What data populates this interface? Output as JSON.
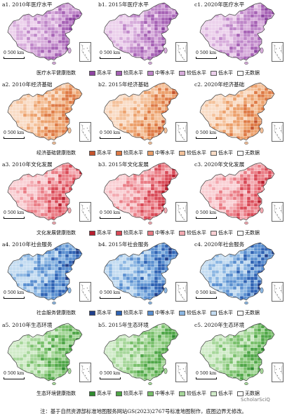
{
  "rows": [
    {
      "key": "medical",
      "palette": [
        "#8e44a2",
        "#a661b5",
        "#bf86c9",
        "#d7acdb",
        "#ecd1ec",
        "#ffffff"
      ],
      "panels": [
        {
          "title": "a1. 2010年医疗水平",
          "scale": "0 500 km"
        },
        {
          "title": "b1. 2015年医疗水平",
          "scale": "0 500 km"
        },
        {
          "title": "c1. 2020年医疗水平",
          "scale": "0 500 km"
        }
      ],
      "legend_title": "医疗水平健康指数",
      "legend_items": [
        "高水平",
        "较高水平",
        "中等水平",
        "较低水平",
        "低水平",
        "无数据"
      ]
    },
    {
      "key": "economic",
      "palette": [
        "#c5532c",
        "#de7a45",
        "#eca06b",
        "#f4c19a",
        "#f9dcc6",
        "#ffffff"
      ],
      "panels": [
        {
          "title": "a2. 2010年经济基础",
          "scale": "0 500 km"
        },
        {
          "title": "b2. 2015年经济基础",
          "scale": "0 500 km"
        },
        {
          "title": "c2. 2020年经济基础",
          "scale": "0 500 km"
        }
      ],
      "legend_title": "经济基础健康指数",
      "legend_items": [
        "高水平",
        "较高水平",
        "中等水平",
        "较低水平",
        "低水平",
        "无数据"
      ]
    },
    {
      "key": "culture",
      "palette": [
        "#b81e2e",
        "#d94a57",
        "#ea7c85",
        "#f3a9b0",
        "#f9d0d4",
        "#ffffff"
      ],
      "panels": [
        {
          "title": "a3. 2010年文化发展",
          "scale": "0 500 km"
        },
        {
          "title": "b3. 2015年文化发展",
          "scale": "0 500 km"
        },
        {
          "title": "c3. 2020年文化发展",
          "scale": "0 500 km"
        }
      ],
      "legend_title": "文化发展健康指数",
      "legend_items": [
        "高水平",
        "较高水平",
        "中等水平",
        "较低水平",
        "低水平",
        "无数据"
      ]
    },
    {
      "key": "social",
      "palette": [
        "#1f3f8c",
        "#2f63b4",
        "#5a8fd0",
        "#8bb6e2",
        "#c4dcf1",
        "#ffffff"
      ],
      "panels": [
        {
          "title": "a4. 2010年社会服务",
          "scale": "0 500 km"
        },
        {
          "title": "b4. 2015年社会服务",
          "scale": "0 500 km"
        },
        {
          "title": "c4. 2020年社会服务",
          "scale": "0 500 km"
        }
      ],
      "legend_title": "社会服务健康指数",
      "legend_items": [
        "高水平",
        "较高水平",
        "中等水平",
        "较低水平",
        "低水平",
        "无数据"
      ]
    },
    {
      "key": "eco",
      "palette": [
        "#2e8b2e",
        "#4fa647",
        "#79c06b",
        "#a6d79a",
        "#d1ebc9",
        "#ffffff"
      ],
      "panels": [
        {
          "title": "a5. 2010年生态环境",
          "scale": "0 500 km"
        },
        {
          "title": "b5. 2015年生态环境",
          "scale": "0 500 km"
        },
        {
          "title": "c5. 2020年生态环境",
          "scale": "0 500 km"
        }
      ],
      "legend_title": "生态环境健康指数",
      "legend_items": [
        "高水平",
        "较高水平",
        "中等水平",
        "较低水平",
        "低水平",
        "无数据"
      ]
    }
  ],
  "note": "注：基于自然资源部标准地图服务网站GS(2023)2767号标准地图制作，底图边界无修改。",
  "watermark": "ScholarSciQ"
}
